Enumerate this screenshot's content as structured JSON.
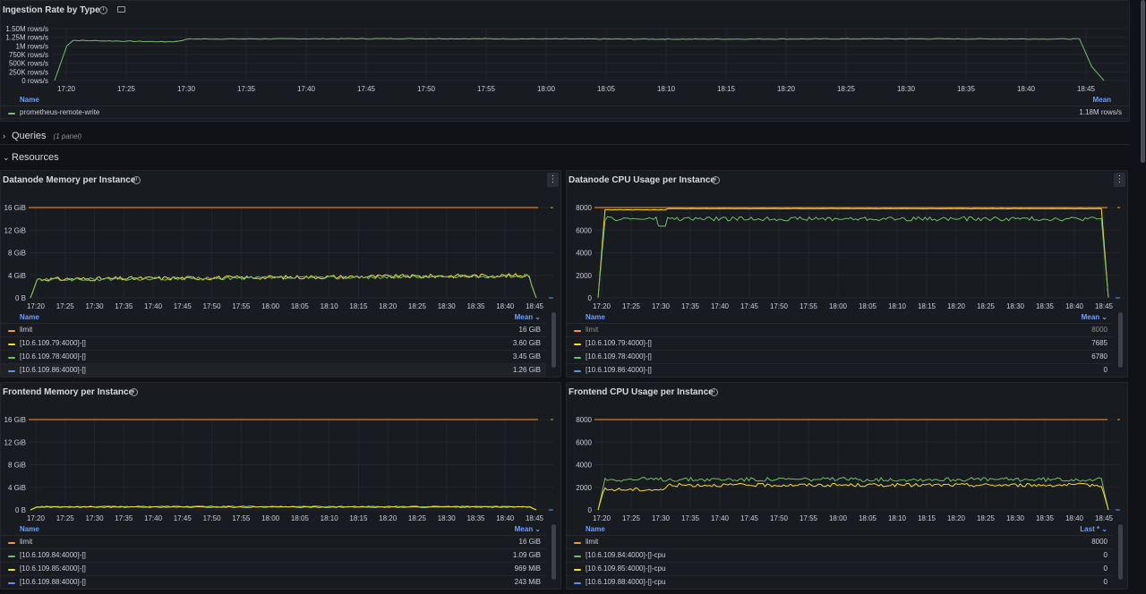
{
  "ingestion": {
    "title": "Ingestion Rate by Type",
    "yticks": [
      "1.50M rows/s",
      "1.25M rows/s",
      "1M rows/s",
      "750K rows/s",
      "500K rows/s",
      "250K rows/s",
      "0 rows/s"
    ],
    "xticks": [
      "17:20",
      "17:25",
      "17:30",
      "17:35",
      "17:40",
      "17:45",
      "17:50",
      "17:55",
      "18:00",
      "18:05",
      "18:10",
      "18:15",
      "18:20",
      "18:25",
      "18:30",
      "18:35",
      "18:40",
      "18:45"
    ],
    "legend_name": "Name",
    "legend_calc": "Mean",
    "series": [
      {
        "name": "prometheus-remote-write",
        "value": "1.18M rows/s",
        "color": "#73bf69"
      }
    ]
  },
  "rows": {
    "queries": {
      "title": "Queries",
      "sub": "(1 panel)"
    },
    "resources": {
      "title": "Resources"
    }
  },
  "dn_mem": {
    "title": "Datanode Memory per Instance",
    "yticks": [
      "16 GiB",
      "12 GiB",
      "8 GiB",
      "4 GiB",
      "0 B"
    ],
    "xticks": [
      "17:20",
      "17:25",
      "17:30",
      "17:35",
      "17:40",
      "17:45",
      "17:50",
      "17:55",
      "18:00",
      "18:05",
      "18:10",
      "18:15",
      "18:20",
      "18:25",
      "18:30",
      "18:35",
      "18:40",
      "18:45"
    ],
    "legend_name": "Name",
    "legend_calc": "Mean ⌄",
    "series": [
      {
        "name": "limit",
        "value": "16 GiB",
        "color": "#ff9830"
      },
      {
        "name": "[10.6.109.79:4000]-[]",
        "value": "3.60 GiB",
        "color": "#fade2a"
      },
      {
        "name": "[10.6.109.78:4000]-[]",
        "value": "3.45 GiB",
        "color": "#73bf69"
      },
      {
        "name": "[10.6.109.86:4000]-[]",
        "value": "1.26 GiB",
        "color": "#5794f2"
      }
    ]
  },
  "dn_cpu": {
    "title": "Datanode CPU Usage per Instance",
    "yticks": [
      "8000",
      "6000",
      "4000",
      "2000",
      "0"
    ],
    "xticks": [
      "17:20",
      "17:25",
      "17:30",
      "17:35",
      "17:40",
      "17:45",
      "17:50",
      "17:55",
      "18:00",
      "18:05",
      "18:10",
      "18:15",
      "18:20",
      "18:25",
      "18:30",
      "18:35",
      "18:40",
      "18:45"
    ],
    "legend_name": "Name",
    "legend_calc": "Mean ⌄",
    "series": [
      {
        "name": "limit",
        "value": "8000",
        "color": "#ff9830"
      },
      {
        "name": "[10.6.109.79:4000]-[]",
        "value": "7685",
        "color": "#fade2a"
      },
      {
        "name": "[10.6.109.78:4000]-[]",
        "value": "6780",
        "color": "#73bf69"
      },
      {
        "name": "[10.6.109.86:4000]-[]",
        "value": "0",
        "color": "#5794f2"
      }
    ]
  },
  "fe_mem": {
    "title": "Frontend Memory per Instance",
    "yticks": [
      "16 GiB",
      "12 GiB",
      "8 GiB",
      "4 GiB",
      "0 B"
    ],
    "xticks": [
      "17:20",
      "17:25",
      "17:30",
      "17:35",
      "17:40",
      "17:45",
      "17:50",
      "17:55",
      "18:00",
      "18:05",
      "18:10",
      "18:15",
      "18:20",
      "18:25",
      "18:30",
      "18:35",
      "18:40",
      "18:45"
    ],
    "legend_name": "Name",
    "legend_calc": "Mean ⌄",
    "series": [
      {
        "name": "limit",
        "value": "16 GiB",
        "color": "#ff9830"
      },
      {
        "name": "[10.6.109.84:4000]-[]",
        "value": "1.09 GiB",
        "color": "#73bf69"
      },
      {
        "name": "[10.6.109.85:4000]-[]",
        "value": "969 MiB",
        "color": "#fade2a"
      },
      {
        "name": "[10.6.109.88:4000]-[]",
        "value": "243 MiB",
        "color": "#5794f2"
      }
    ]
  },
  "fe_cpu": {
    "title": "Frontend CPU Usage per Instance",
    "yticks": [
      "8000",
      "6000",
      "4000",
      "2000",
      "0"
    ],
    "xticks": [
      "17:20",
      "17:25",
      "17:30",
      "17:35",
      "17:40",
      "17:45",
      "17:50",
      "17:55",
      "18:00",
      "18:05",
      "18:10",
      "18:15",
      "18:20",
      "18:25",
      "18:30",
      "18:35",
      "18:40",
      "18:45"
    ],
    "legend_name": "Name",
    "legend_calc": "Last * ⌄",
    "series": [
      {
        "name": "limit",
        "value": "8000",
        "color": "#ff9830"
      },
      {
        "name": "[10.6.109.84:4000]-[]-cpu",
        "value": "0",
        "color": "#73bf69"
      },
      {
        "name": "[10.6.109.85:4000]-[]-cpu",
        "value": "0",
        "color": "#fade2a"
      },
      {
        "name": "[10.6.109.88:4000]-[]-cpu",
        "value": "0",
        "color": "#5794f2"
      }
    ]
  },
  "chart_data": [
    {
      "type": "line",
      "title": "Ingestion Rate by Type",
      "ylim": [
        0,
        1500000
      ],
      "x_range": [
        "17:19",
        "18:46"
      ],
      "series": [
        {
          "name": "prometheus-remote-write",
          "mean": 1180000,
          "points": [
            [
              0,
              0
            ],
            [
              1,
              1000000
            ],
            [
              1.5,
              1160000
            ],
            [
              9,
              1120000
            ],
            [
              10,
              1130000
            ],
            [
              11,
              1200000
            ],
            [
              30,
              1210000
            ],
            [
              50,
              1195000
            ],
            [
              70,
              1205000
            ],
            [
              84,
              1200000
            ],
            [
              85,
              400000
            ],
            [
              86,
              0
            ]
          ]
        }
      ]
    },
    {
      "type": "line",
      "title": "Datanode Memory per Instance",
      "ylim": [
        0,
        17179869184
      ],
      "series": [
        {
          "name": "limit",
          "mean": "16 GiB"
        },
        {
          "name": "[10.6.109.79:4000]-[]",
          "mean": "3.60 GiB"
        },
        {
          "name": "[10.6.109.78:4000]-[]",
          "mean": "3.45 GiB"
        },
        {
          "name": "[10.6.109.86:4000]-[]",
          "mean": "1.26 GiB"
        }
      ]
    },
    {
      "type": "line",
      "title": "Datanode CPU Usage per Instance",
      "ylim": [
        0,
        8500
      ],
      "series": [
        {
          "name": "limit",
          "mean": 8000
        },
        {
          "name": "[10.6.109.79:4000]-[]",
          "mean": 7685
        },
        {
          "name": "[10.6.109.78:4000]-[]",
          "mean": 6780
        },
        {
          "name": "[10.6.109.86:4000]-[]",
          "mean": 0
        }
      ]
    },
    {
      "type": "line",
      "title": "Frontend Memory per Instance",
      "ylim": [
        0,
        17179869184
      ],
      "series": [
        {
          "name": "limit",
          "mean": "16 GiB"
        },
        {
          "name": "[10.6.109.84:4000]-[]",
          "mean": "1.09 GiB"
        },
        {
          "name": "[10.6.109.85:4000]-[]",
          "mean": "969 MiB"
        },
        {
          "name": "[10.6.109.88:4000]-[]",
          "mean": "243 MiB"
        }
      ]
    },
    {
      "type": "line",
      "title": "Frontend CPU Usage per Instance",
      "ylim": [
        0,
        8500
      ],
      "series": [
        {
          "name": "limit",
          "last": 8000
        },
        {
          "name": "[10.6.109.84:4000]-[]-cpu",
          "last": 0
        },
        {
          "name": "[10.6.109.85:4000]-[]-cpu",
          "last": 0
        },
        {
          "name": "[10.6.109.88:4000]-[]-cpu",
          "last": 0
        }
      ]
    }
  ]
}
